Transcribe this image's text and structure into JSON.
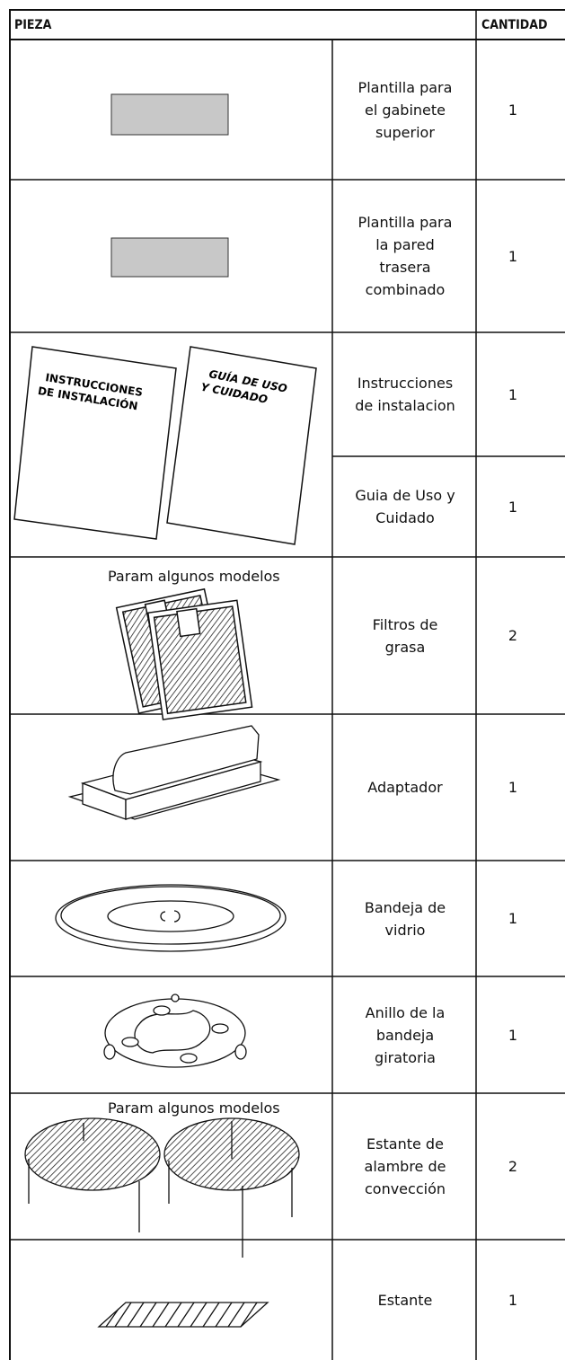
{
  "header": {
    "part": "PIEZA",
    "quantity": "CANTIDAD"
  },
  "booklets": [
    "INSTRUCCIONES\nDE INSTALACIÓN",
    "GUÍA DE USO\nY CUIDADO"
  ],
  "rows": [
    {
      "description": "Plantilla para\nel gabinete\nsuperior",
      "quantity": 1
    },
    {
      "description": "Plantilla para\nla  pared\ntrasera\ncombinado",
      "quantity": 1
    },
    {
      "description": "Instrucciones\nde instalacion",
      "quantity": 1
    },
    {
      "description": "Guia de Uso y\nCuidado",
      "quantity": 1
    },
    {
      "note": "Param algunos modelos",
      "description": "Filtros de\ngrasa",
      "quantity": 2
    },
    {
      "description": "Adaptador",
      "quantity": 1
    },
    {
      "description": "Bandeja de\nvidrio",
      "quantity": 1
    },
    {
      "description": "Anillo de la\nbandeja\ngiratoria",
      "quantity": 1
    },
    {
      "note": "Param algunos modelos",
      "description": "Estante de\nalambre de\nconvección",
      "quantity": 2
    },
    {
      "description": "Estante",
      "quantity": 1
    }
  ]
}
